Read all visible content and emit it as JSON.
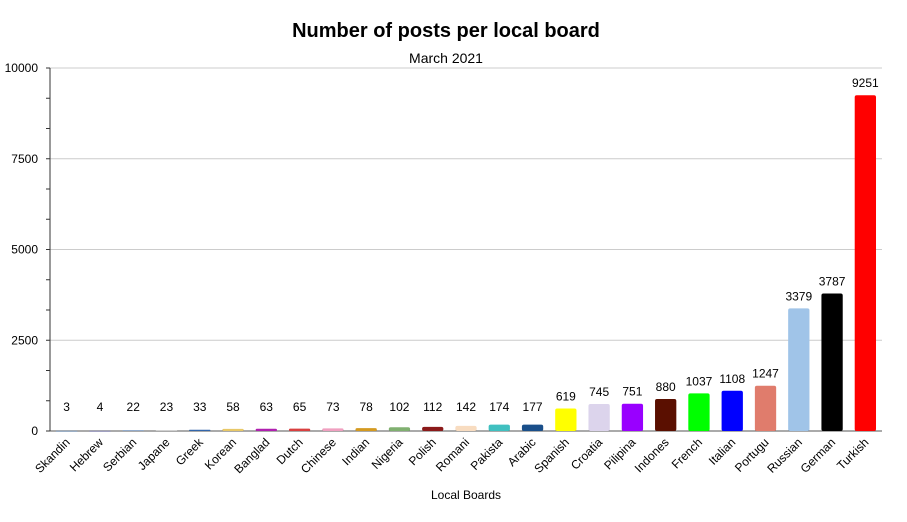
{
  "chart_data": {
    "type": "bar",
    "title": "Number of posts per local board",
    "subtitle": "March 2021",
    "xlabel": "Local Boards",
    "ylabel": "",
    "ylim": [
      0,
      10000
    ],
    "yticks": [
      0,
      2500,
      5000,
      7500,
      10000
    ],
    "grid": true,
    "legend": "none",
    "categories": [
      "Skandin",
      "Hebrew",
      "Serbian",
      "Japane",
      "Greek",
      "Korean",
      "Banglad",
      "Dutch",
      "Chinese",
      "Indian",
      "Nigeria",
      "Polish",
      "Romani",
      "Pakista",
      "Arabic",
      "Spanish",
      "Croatia",
      "Pilipina",
      "Indones",
      "French",
      "Italian",
      "Portugu",
      "Russian",
      "German",
      "Turkish"
    ],
    "values": [
      3,
      4,
      22,
      23,
      33,
      58,
      63,
      65,
      73,
      78,
      102,
      112,
      142,
      174,
      177,
      619,
      745,
      751,
      880,
      1037,
      1108,
      1247,
      3379,
      3787,
      9251
    ],
    "colors": [
      "#2b5f9e",
      "#3b3b8f",
      "#6e8db8",
      "#c9c9c9",
      "#3366aa",
      "#e8c868",
      "#b020b0",
      "#d94040",
      "#f0a0c0",
      "#d49a20",
      "#80b070",
      "#8b1a1a",
      "#f8dcc0",
      "#40c0c0",
      "#1a4f8a",
      "#ffff00",
      "#dcd4ec",
      "#9900ff",
      "#5a0f00",
      "#00ff00",
      "#0000ff",
      "#e07c6c",
      "#a0c4e8",
      "#000000",
      "#ff0000"
    ]
  }
}
